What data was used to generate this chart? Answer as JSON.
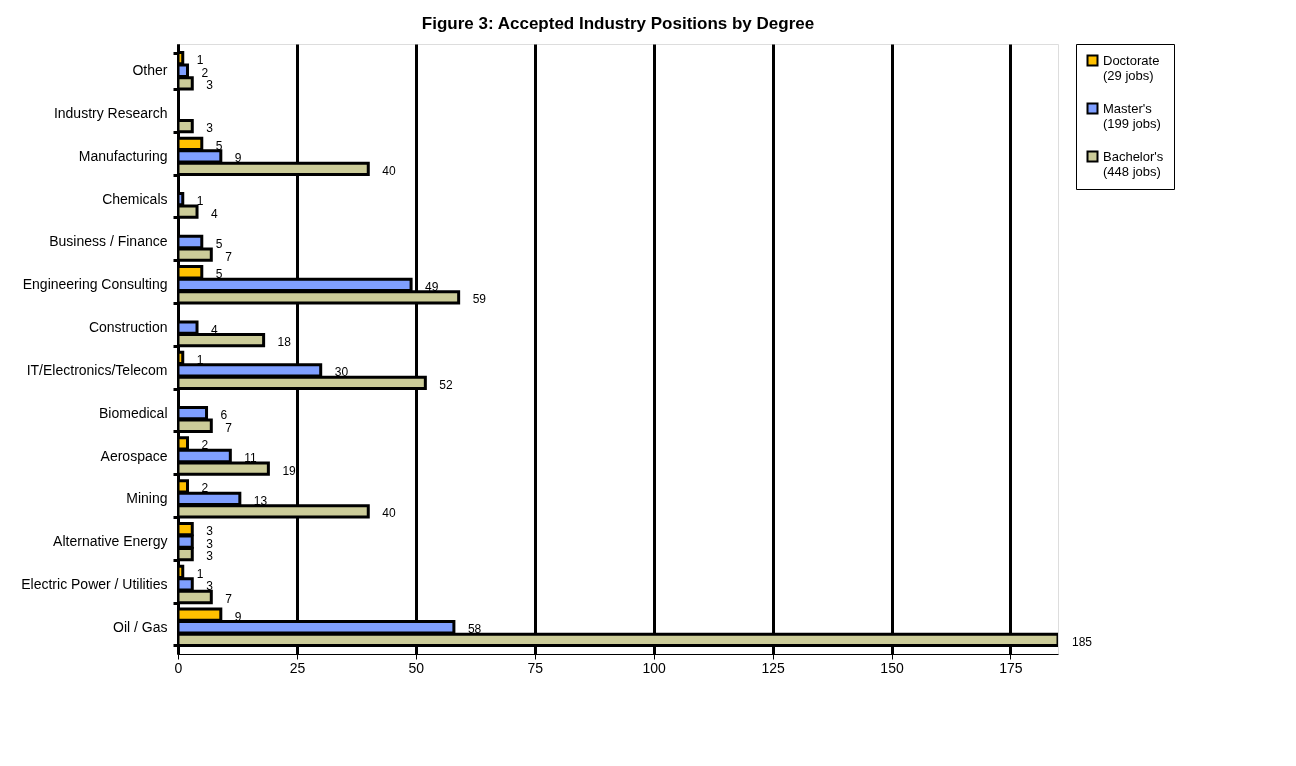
{
  "chart_data": {
    "type": "bar",
    "orientation": "horizontal",
    "title": "Figure 3:  Accepted Industry  Positions by Degree",
    "categories": [
      "Other",
      "Industry Research",
      "Manufacturing",
      "Chemicals",
      "Business / Finance",
      "Engineering Consulting",
      "Construction",
      "IT/Electronics/Telecom",
      "Biomedical",
      "Aerospace",
      "Mining",
      "Alternative Energy",
      "Electric Power / Utilities",
      "Oil / Gas"
    ],
    "series": [
      {
        "name": "Doctorate (29 jobs)",
        "color": "#ffc000",
        "values": [
          1,
          null,
          5,
          null,
          null,
          5,
          null,
          1,
          null,
          2,
          2,
          3,
          1,
          9
        ]
      },
      {
        "name": "Master's (199 jobs)",
        "color": "#7f9fff",
        "values": [
          2,
          null,
          9,
          1,
          5,
          49,
          4,
          30,
          6,
          11,
          13,
          3,
          3,
          58
        ]
      },
      {
        "name": "Bachelor's (448 jobs)",
        "color": "#cccc99",
        "values": [
          3,
          3,
          40,
          4,
          7,
          59,
          18,
          52,
          7,
          19,
          40,
          3,
          7,
          185
        ]
      }
    ],
    "xlim": [
      0,
      185
    ],
    "xticks": [
      0,
      25,
      50,
      75,
      100,
      125,
      150,
      175
    ],
    "grid": "x",
    "legend": "right",
    "data_labels": true
  }
}
